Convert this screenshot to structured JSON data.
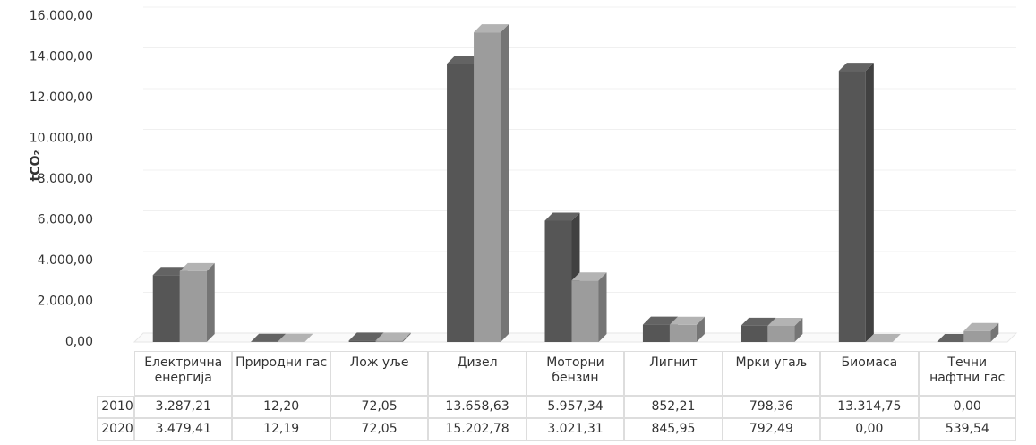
{
  "chart_data": {
    "type": "bar3d",
    "y_label": "tCO₂",
    "categories": [
      "Електрична енергија",
      "Природни гас",
      "Лож уље",
      "Дизел",
      "Моторни бензин",
      "Лигнит",
      "Мрки угаљ",
      "Биомаса",
      "Течни нафтни гас"
    ],
    "series": [
      {
        "name": "2010",
        "color": "#565656",
        "values": [
          3287.21,
          12.2,
          72.05,
          13658.63,
          5957.34,
          852.21,
          798.36,
          13314.75,
          0.0
        ],
        "value_labels": [
          "3.287,21",
          "12,20",
          "72,05",
          "13.658,63",
          "5.957,34",
          "852,21",
          "798,36",
          "13.314,75",
          "0,00"
        ]
      },
      {
        "name": "2020",
        "color": "#9c9c9c",
        "values": [
          3479.41,
          12.19,
          72.05,
          15202.78,
          3021.31,
          845.95,
          792.49,
          0.0,
          539.54
        ],
        "value_labels": [
          "3.479,41",
          "12,19",
          "72,05",
          "15.202,78",
          "3.021,31",
          "845,95",
          "792,49",
          "0,00",
          "539,54"
        ]
      }
    ],
    "ylim": [
      0,
      16000
    ],
    "yticks": [
      {
        "value": 0,
        "label": "0,00"
      },
      {
        "value": 2000,
        "label": "2.000,00"
      },
      {
        "value": 4000,
        "label": "4.000,00"
      },
      {
        "value": 6000,
        "label": "6.000,00"
      },
      {
        "value": 8000,
        "label": "8.000,00"
      },
      {
        "value": 10000,
        "label": "10.000,00"
      },
      {
        "value": 12000,
        "label": "12.000,00"
      },
      {
        "value": 14000,
        "label": "14.000,00"
      },
      {
        "value": 16000,
        "label": "16.000,00"
      }
    ],
    "grid": true
  }
}
